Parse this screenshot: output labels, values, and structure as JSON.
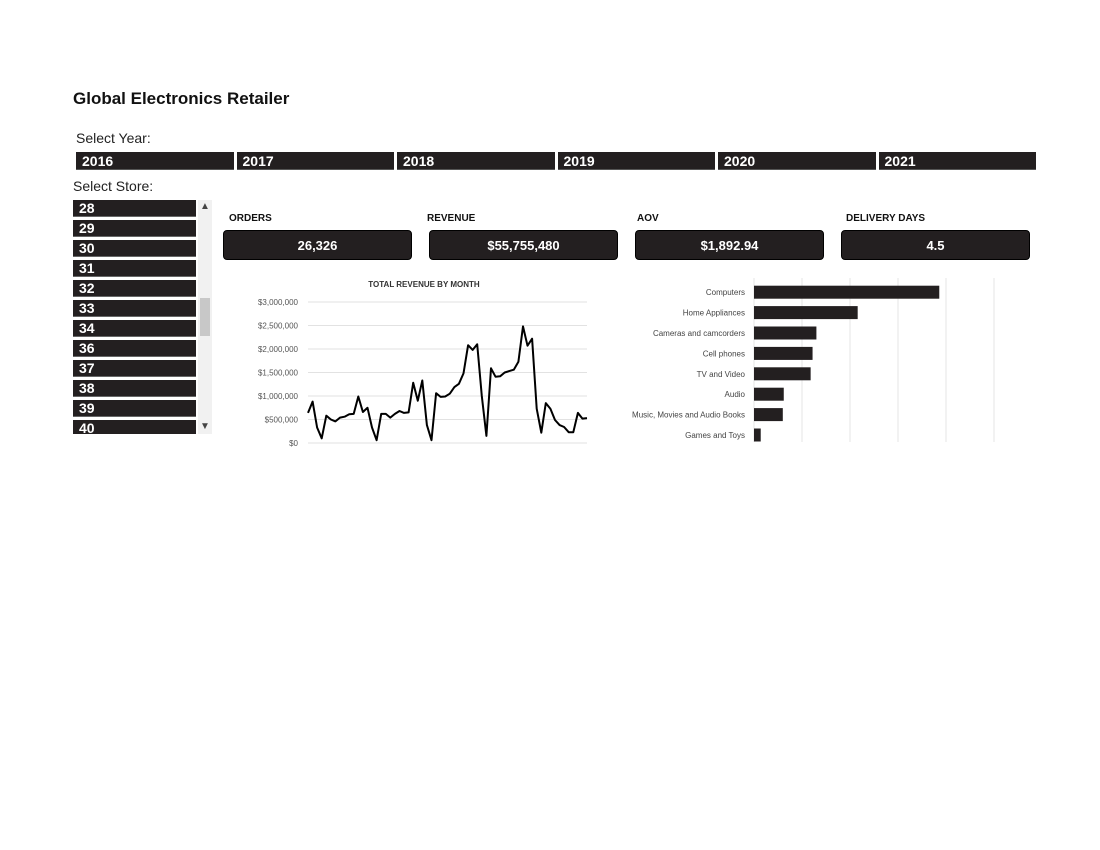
{
  "header": {
    "title": "Global Electronics Retailer"
  },
  "filters": {
    "year_label": "Select Year:",
    "years": [
      "2016",
      "2017",
      "2018",
      "2019",
      "2020",
      "2021"
    ],
    "store_label": "Select Store:",
    "stores": [
      "28",
      "29",
      "30",
      "31",
      "32",
      "33",
      "34",
      "36",
      "37",
      "38",
      "39",
      "40"
    ],
    "scroll_up_icon": "▲",
    "scroll_down_icon": "▼"
  },
  "kpis": [
    {
      "label": "ORDERS",
      "value": "26,326"
    },
    {
      "label": "REVENUE",
      "value": "$55,755,480"
    },
    {
      "label": "AOV",
      "value": "$1,892.94"
    },
    {
      "label": "DELIVERY DAYS",
      "value": "4.5"
    }
  ],
  "colors": {
    "slicer": "#231f20",
    "line": "#000000",
    "bar": "#231f20",
    "grid": "#d9d9d9"
  },
  "chart_data": [
    {
      "type": "line",
      "title": "TOTAL REVENUE BY MONTH",
      "ylim": [
        0,
        3000000
      ],
      "yticks": [
        "$0",
        "$500,000",
        "$1,000,000",
        "$1,500,000",
        "$2,000,000",
        "$2,500,000",
        "$3,000,000"
      ],
      "grid": true,
      "values": [
        640000,
        880000,
        330000,
        100000,
        580000,
        500000,
        460000,
        540000,
        560000,
        610000,
        620000,
        990000,
        660000,
        750000,
        330000,
        60000,
        620000,
        620000,
        540000,
        620000,
        680000,
        640000,
        650000,
        1280000,
        900000,
        1330000,
        380000,
        60000,
        1060000,
        980000,
        990000,
        1050000,
        1190000,
        1260000,
        1480000,
        2080000,
        1980000,
        2100000,
        1000000,
        150000,
        1590000,
        1410000,
        1420000,
        1500000,
        1530000,
        1560000,
        1730000,
        2480000,
        2070000,
        2220000,
        730000,
        220000,
        850000,
        730000,
        490000,
        380000,
        340000,
        230000,
        230000,
        640000,
        520000,
        530000
      ]
    },
    {
      "type": "bar",
      "orientation": "horizontal",
      "categories": [
        "Computers",
        "Home Appliances",
        "Cameras and camcorders",
        "Cell phones",
        "TV and Video",
        "Audio",
        "Music, Movies and Audio Books",
        "Games and Toys"
      ],
      "values": [
        19300000,
        10800000,
        6500000,
        6100000,
        5900000,
        3100000,
        3000000,
        700000
      ],
      "xlim": [
        0,
        25000000
      ],
      "grid": true
    }
  ]
}
